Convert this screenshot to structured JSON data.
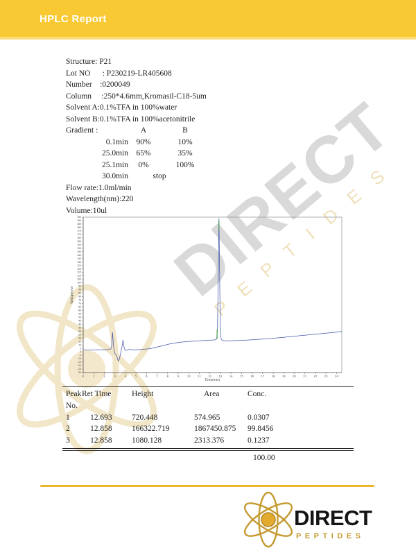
{
  "header": {
    "title": "HPLC Report"
  },
  "report": {
    "lines": [
      "Structure: P21",
      "Lot NO      : P230219-LR405608",
      "Number    :0200049",
      "Column     :250*4.6mm,Kromasil-C18-5um",
      "Solvent A:0.1%TFA in 100%water",
      "Solvent B:0.1%TFA in 100%acetonitrile"
    ],
    "gradient": {
      "label": "Gradient :",
      "col_a": "A",
      "col_b": "B",
      "rows": [
        {
          "time": "0.1min",
          "a": "90%",
          "b": "10%"
        },
        {
          "time": "25.0min",
          "a": "65%",
          "b": "35%"
        },
        {
          "time": "25.1min",
          "a": "0%",
          "b": "100%"
        },
        {
          "time": "30.0min",
          "a": "stop",
          "b": ""
        }
      ]
    },
    "flow_rate": "Flow rate:1.0ml/min",
    "wavelength": "Wavelength(nm):220",
    "volume": "Volume:10ul"
  },
  "chart_data": {
    "type": "line",
    "title": "",
    "xlabel": "Time(min)",
    "ylabel": "Voltage(mv)",
    "xlim": [
      0,
      24.5
    ],
    "ylim": [
      -30,
      195
    ],
    "x_tick_step": 1,
    "y_tick_step": 5,
    "grid": false,
    "legend": "none",
    "series": [
      {
        "name": "chromatogram",
        "points": [
          [
            0,
            3
          ],
          [
            0.6,
            2.6
          ],
          [
            1.2,
            2.8
          ],
          [
            1.8,
            3
          ],
          [
            2.3,
            3.2
          ],
          [
            2.55,
            3.5
          ],
          [
            2.68,
            6
          ],
          [
            2.78,
            28
          ],
          [
            2.88,
            8
          ],
          [
            2.98,
            -2
          ],
          [
            3.15,
            -5
          ],
          [
            3.32,
            -13
          ],
          [
            3.42,
            -11
          ],
          [
            3.55,
            -2
          ],
          [
            3.68,
            8
          ],
          [
            3.78,
            17
          ],
          [
            3.88,
            6
          ],
          [
            3.98,
            2
          ],
          [
            4.15,
            2.5
          ],
          [
            4.4,
            3.5
          ],
          [
            4.7,
            2.8
          ],
          [
            5,
            3
          ],
          [
            5.4,
            3.2
          ],
          [
            5.8,
            3.8
          ],
          [
            6.2,
            4.5
          ],
          [
            6.6,
            5.5
          ],
          [
            7,
            7
          ],
          [
            7.4,
            8.5
          ],
          [
            7.8,
            10
          ],
          [
            8.2,
            11.5
          ],
          [
            8.6,
            12.5
          ],
          [
            9,
            13.5
          ],
          [
            9.4,
            14.2
          ],
          [
            9.8,
            14.8
          ],
          [
            10.2,
            15.2
          ],
          [
            10.6,
            15.6
          ],
          [
            11,
            16
          ],
          [
            11.5,
            16.4
          ],
          [
            12,
            16.8
          ],
          [
            12.4,
            17.2
          ],
          [
            12.55,
            17.6
          ],
          [
            12.65,
            19
          ],
          [
            12.72,
            35
          ],
          [
            12.8,
            120
          ],
          [
            12.858,
            193
          ],
          [
            12.92,
            120
          ],
          [
            12.98,
            40
          ],
          [
            13.05,
            20
          ],
          [
            13.15,
            17
          ],
          [
            13.35,
            16.2
          ],
          [
            13.6,
            16
          ],
          [
            14,
            16
          ],
          [
            14.5,
            16.3
          ],
          [
            15,
            16.6
          ],
          [
            15.5,
            17
          ],
          [
            16,
            17.4
          ],
          [
            16.5,
            17.9
          ],
          [
            17,
            18.4
          ],
          [
            17.5,
            19
          ],
          [
            18,
            19.6
          ],
          [
            18.5,
            20.3
          ],
          [
            19,
            21
          ],
          [
            19.5,
            21.8
          ],
          [
            20,
            22.5
          ],
          [
            20.5,
            23.3
          ],
          [
            21,
            24
          ],
          [
            21.5,
            24.8
          ],
          [
            22,
            25.5
          ],
          [
            22.5,
            26.3
          ],
          [
            23,
            27
          ],
          [
            23.5,
            27.8
          ],
          [
            24,
            28.6
          ],
          [
            24.5,
            29.5
          ]
        ]
      }
    ],
    "peak_markers": [
      {
        "x": 12.858,
        "y1": 176,
        "y2": 190
      },
      {
        "x": 12.69,
        "y1": 19,
        "y2": 33
      }
    ],
    "colors": {
      "line": "#4355A8",
      "marker": "#3D9C40",
      "axis": "#777777"
    }
  },
  "peak_table": {
    "headers": [
      "Peak No.",
      "Ret Time",
      "Height",
      "Area",
      "Conc."
    ],
    "rows": [
      [
        "1",
        "12.693",
        "720.448",
        "574.965",
        "0.0307"
      ],
      [
        "2",
        "12.858",
        "166322.719",
        "1867450.875",
        "99.8456"
      ],
      [
        "3",
        "12.858",
        "1080.128",
        "2313.376",
        "0.1237"
      ]
    ],
    "total": "100.00"
  },
  "watermark": {
    "line1": "DIRECT",
    "line2": "PEPTIDES"
  },
  "footer": {
    "brand": "DIRECT",
    "brand_sub": "PEPTIDES"
  },
  "colors": {
    "header_bg": "#F8C933",
    "header_bg_edge": "#FBDD7C",
    "gold_line": "#EBB52C",
    "logo_gold": "#C49A2E",
    "watermark_gray": "#D9D9D9",
    "watermark_gold": "#F0E1BC",
    "chart_line": "#4355A8",
    "peak_marker_green": "#3D9C40"
  }
}
